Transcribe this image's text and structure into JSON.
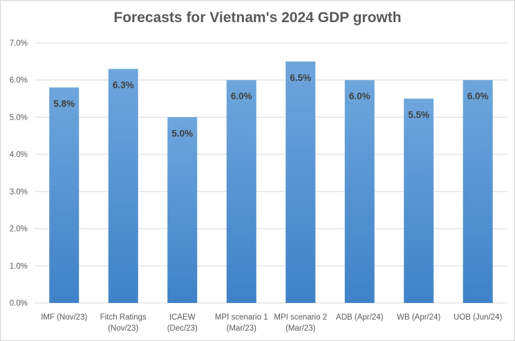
{
  "chart_data": {
    "type": "bar",
    "title": "Forecasts for Vietnam's 2024 GDP growth",
    "xlabel": "",
    "ylabel": "",
    "categories": [
      [
        "IMF (Nov/23)"
      ],
      [
        "Fitch Ratings",
        "(Nov/23)"
      ],
      [
        "ICAEW",
        "(Dec/23)"
      ],
      [
        "MPI scenario 1",
        "(Mar/23)"
      ],
      [
        "MPI scenario 2",
        "(Mar/23)"
      ],
      [
        "ADB (Apr/24)"
      ],
      [
        "WB (Apr/24)"
      ],
      [
        "UOB (Jun/24)"
      ]
    ],
    "values": [
      5.8,
      6.3,
      5.0,
      6.0,
      6.5,
      6.0,
      5.5,
      6.0
    ],
    "data_labels": [
      "5.8%",
      "6.3%",
      "5.0%",
      "6.0%",
      "6.5%",
      "6.0%",
      "5.5%",
      "6.0%"
    ],
    "ylim": [
      0,
      7
    ],
    "yticks": [
      "0.0%",
      "1.0%",
      "2.0%",
      "3.0%",
      "4.0%",
      "5.0%",
      "6.0%",
      "7.0%"
    ],
    "grid": true,
    "legend": "none",
    "colors": {
      "bar_top": "#6ea6dc",
      "bar_bottom": "#3f82c8",
      "grid": "#d9d9d9"
    }
  }
}
